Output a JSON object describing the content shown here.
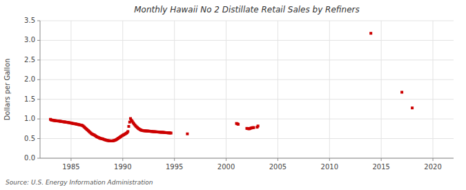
{
  "chart_data": {
    "type": "scatter",
    "title": "Monthly Hawaii No 2 Distillate Retail Sales by Refiners",
    "y_label": "Dollars per Gallon",
    "annotations": [
      "Source: U.S. Energy Information Administration"
    ],
    "color": "#cc0000",
    "marker": "square",
    "grid": true,
    "xlim": [
      1982,
      2022
    ],
    "ylim": [
      0.0,
      3.5
    ],
    "xticks": [
      1985,
      1990,
      1995,
      2000,
      2005,
      2010,
      2015,
      2020
    ],
    "yticks": [
      {
        "value": 0.0,
        "label": "0.0"
      },
      0.5,
      {
        "value": 1.0,
        "label": "1.0"
      },
      1.5,
      {
        "value": 2.0,
        "label": "2.0"
      },
      2.5,
      {
        "value": 3.0,
        "label": "3.0"
      },
      3.5
    ],
    "x": [
      1983.0,
      1983.08,
      1983.17,
      1983.25,
      1983.33,
      1983.42,
      1983.5,
      1983.58,
      1983.67,
      1983.75,
      1983.83,
      1983.92,
      1984.0,
      1984.08,
      1984.17,
      1984.25,
      1984.33,
      1984.42,
      1984.5,
      1984.58,
      1984.67,
      1984.75,
      1984.83,
      1984.92,
      1985.0,
      1985.08,
      1985.17,
      1985.25,
      1985.33,
      1985.42,
      1985.5,
      1985.58,
      1985.67,
      1985.75,
      1985.83,
      1985.92,
      1986.0,
      1986.08,
      1986.17,
      1986.25,
      1986.33,
      1986.42,
      1986.5,
      1986.58,
      1986.67,
      1986.75,
      1986.83,
      1986.92,
      1987.0,
      1987.08,
      1987.17,
      1987.25,
      1987.33,
      1987.42,
      1987.5,
      1987.58,
      1987.67,
      1987.75,
      1987.83,
      1987.92,
      1988.0,
      1988.08,
      1988.17,
      1988.25,
      1988.33,
      1988.42,
      1988.5,
      1988.58,
      1988.67,
      1988.75,
      1988.83,
      1988.92,
      1989.0,
      1989.08,
      1989.17,
      1989.25,
      1989.33,
      1989.42,
      1989.5,
      1989.58,
      1989.67,
      1989.75,
      1989.83,
      1989.92,
      1990.0,
      1990.08,
      1990.17,
      1990.25,
      1990.33,
      1990.42,
      1990.5,
      1990.58,
      1990.67,
      1990.75,
      1990.83,
      1990.92,
      1991.0,
      1991.08,
      1991.17,
      1991.25,
      1991.33,
      1991.42,
      1991.5,
      1991.58,
      1991.67,
      1991.75,
      1991.83,
      1991.92,
      1992.0,
      1992.08,
      1992.17,
      1992.25,
      1992.33,
      1992.42,
      1992.5,
      1992.58,
      1992.67,
      1992.75,
      1992.83,
      1992.92,
      1993.0,
      1993.08,
      1993.17,
      1993.25,
      1993.33,
      1993.42,
      1993.5,
      1993.58,
      1993.67,
      1993.75,
      1993.83,
      1993.92,
      1994.0,
      1994.08,
      1994.17,
      1994.25,
      1994.33,
      1994.42,
      1994.5,
      1994.58,
      1994.67,
      1996.25,
      2001.0,
      2001.08,
      2001.17,
      2002.0,
      2002.08,
      2002.17,
      2002.25,
      2002.33,
      2002.42,
      2002.5,
      2002.58,
      2002.67,
      2003.0,
      2003.08,
      2014.0,
      2017.0,
      2018.0
    ],
    "values": [
      0.99,
      0.975,
      0.97,
      0.965,
      0.96,
      0.958,
      0.955,
      0.952,
      0.95,
      0.948,
      0.945,
      0.942,
      0.938,
      0.935,
      0.932,
      0.928,
      0.925,
      0.922,
      0.918,
      0.915,
      0.912,
      0.908,
      0.905,
      0.9,
      0.895,
      0.89,
      0.885,
      0.882,
      0.878,
      0.875,
      0.87,
      0.865,
      0.86,
      0.855,
      0.85,
      0.845,
      0.84,
      0.835,
      0.82,
      0.8,
      0.78,
      0.76,
      0.74,
      0.72,
      0.7,
      0.68,
      0.66,
      0.64,
      0.62,
      0.61,
      0.6,
      0.59,
      0.575,
      0.56,
      0.545,
      0.535,
      0.525,
      0.515,
      0.505,
      0.5,
      0.495,
      0.49,
      0.48,
      0.472,
      0.465,
      0.458,
      0.452,
      0.448,
      0.445,
      0.443,
      0.44,
      0.44,
      0.442,
      0.445,
      0.45,
      0.458,
      0.468,
      0.48,
      0.495,
      0.51,
      0.525,
      0.54,
      0.555,
      0.57,
      0.585,
      0.595,
      0.608,
      0.62,
      0.635,
      0.65,
      0.68,
      0.81,
      0.92,
      1.01,
      0.97,
      0.94,
      0.905,
      0.875,
      0.848,
      0.82,
      0.8,
      0.78,
      0.76,
      0.745,
      0.73,
      0.718,
      0.71,
      0.705,
      0.7,
      0.698,
      0.696,
      0.695,
      0.693,
      0.692,
      0.69,
      0.688,
      0.685,
      0.682,
      0.68,
      0.678,
      0.676,
      0.675,
      0.673,
      0.671,
      0.67,
      0.668,
      0.665,
      0.663,
      0.662,
      0.66,
      0.66,
      0.66,
      0.655,
      0.653,
      0.651,
      0.65,
      0.648,
      0.646,
      0.645,
      0.643,
      0.641,
      0.62,
      0.885,
      0.875,
      0.865,
      0.76,
      0.755,
      0.752,
      0.75,
      0.76,
      0.768,
      0.775,
      0.778,
      0.78,
      0.79,
      0.82,
      3.18,
      1.68,
      1.28
    ]
  }
}
